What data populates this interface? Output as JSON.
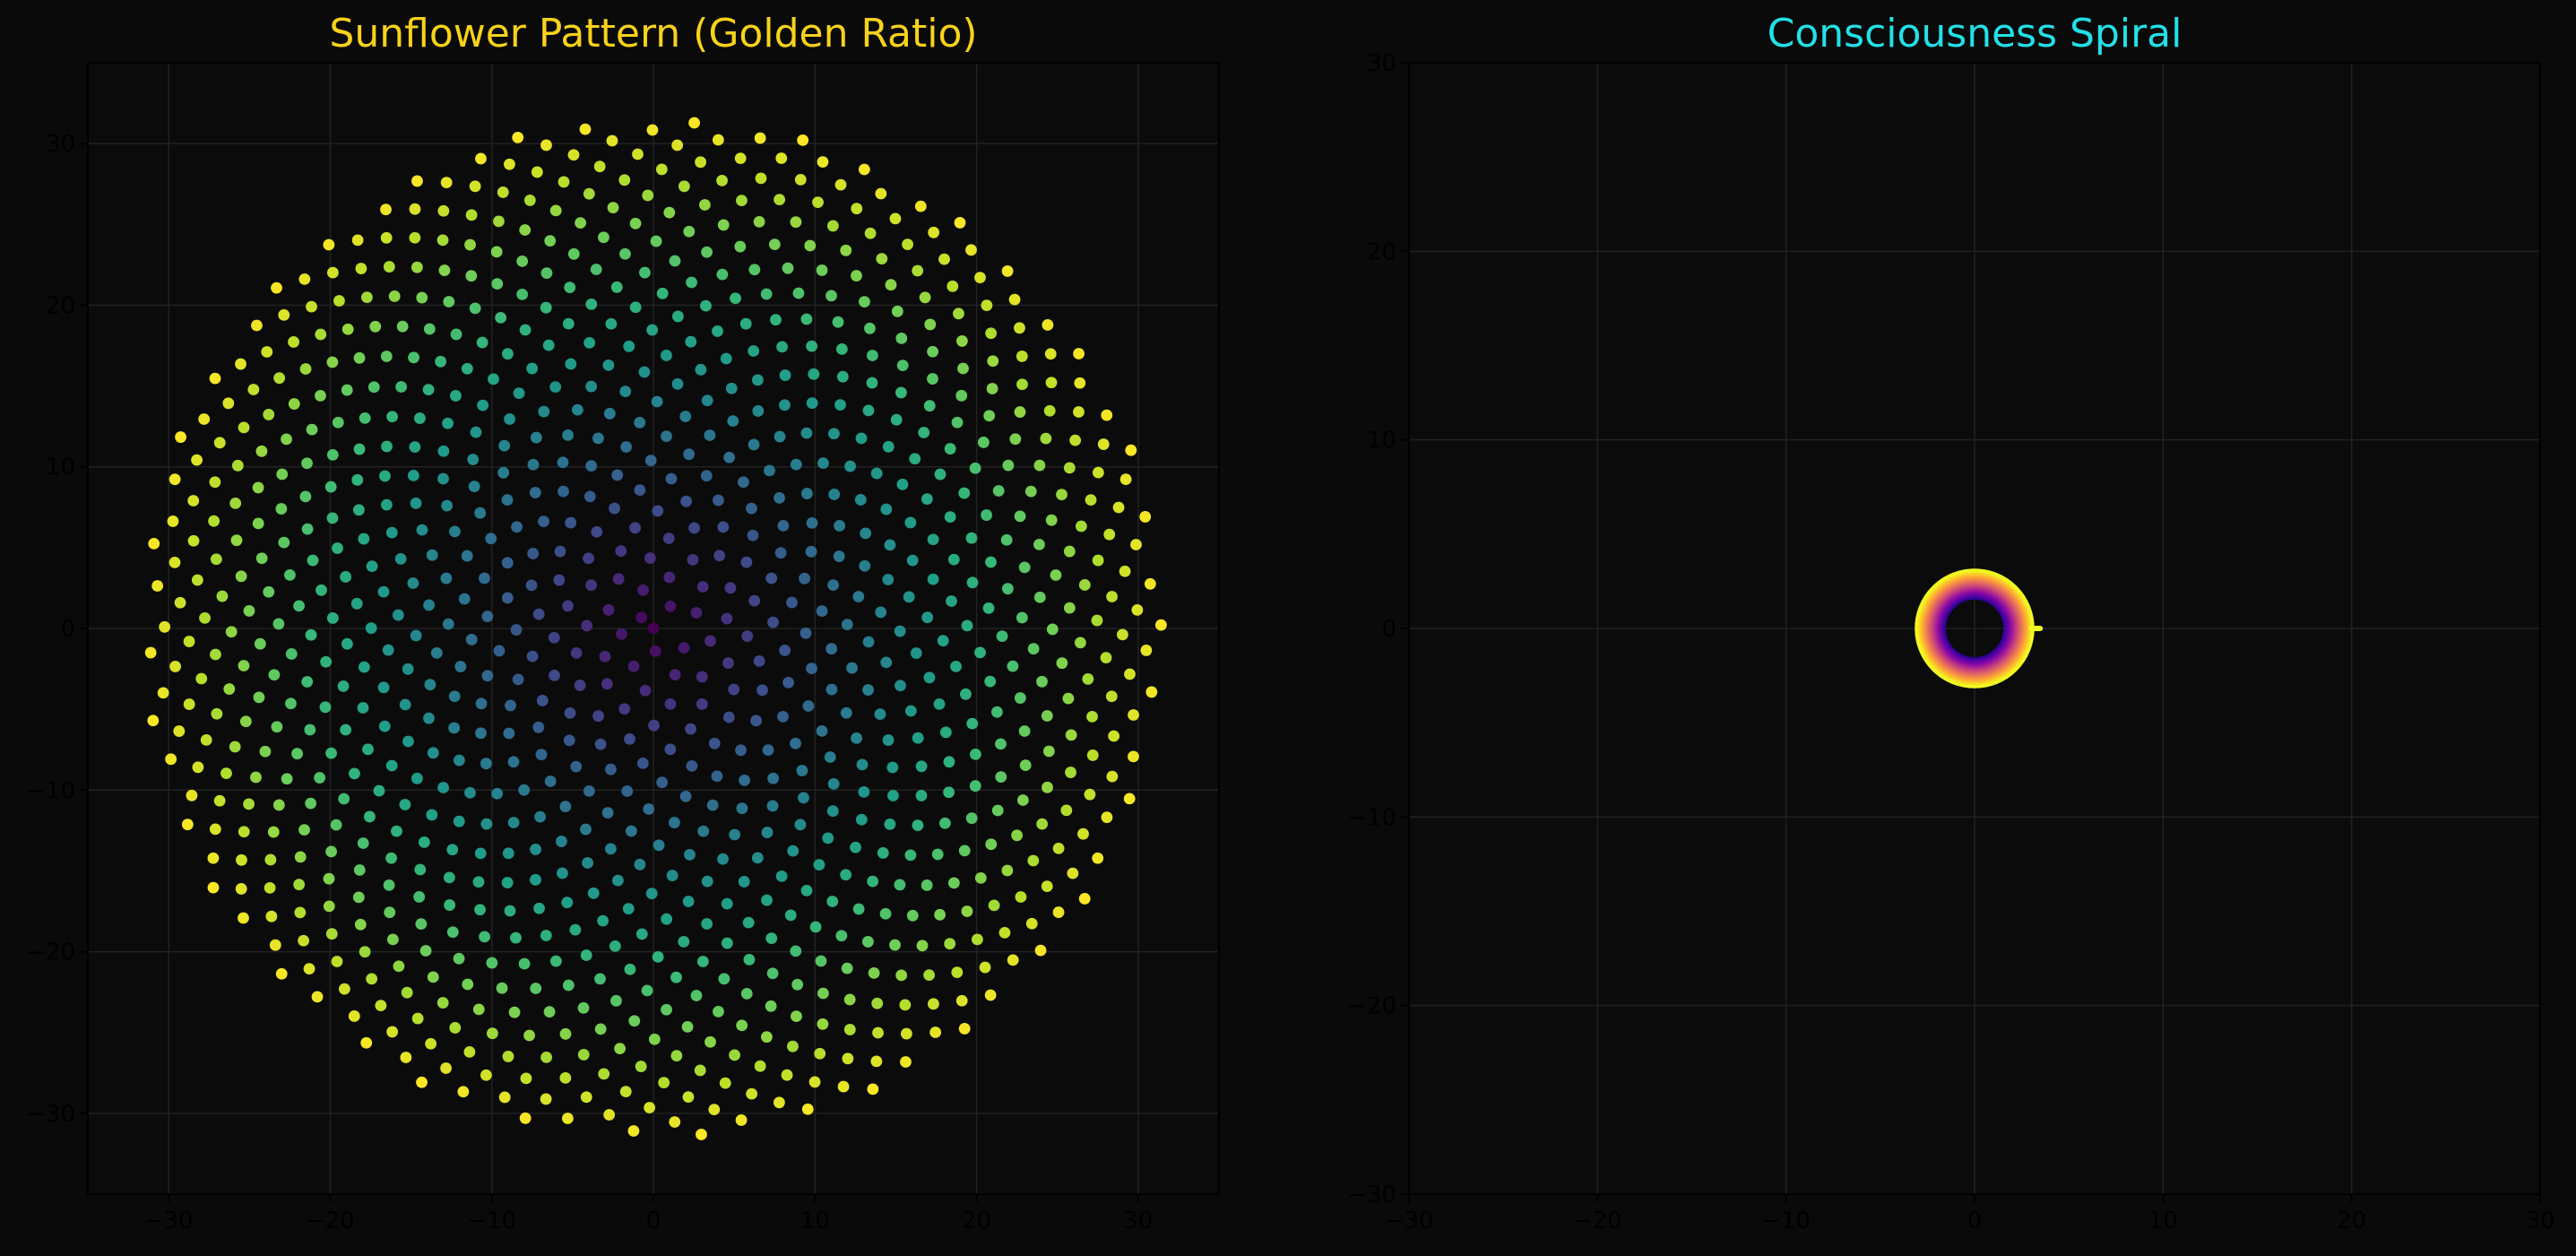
{
  "figure": {
    "background": "#0a0a0a",
    "axes_background": "#0b0b0b",
    "grid_color": "#222222",
    "tick_label_color": "#000000"
  },
  "chart_data": [
    {
      "type": "scatter",
      "title": "Sunflower Pattern (Golden Ratio)",
      "title_color": "#f7d21a",
      "xlabel": "",
      "ylabel": "",
      "xlim": [
        -35,
        35
      ],
      "ylim": [
        -35,
        35
      ],
      "xticks": [
        -30,
        -20,
        -10,
        0,
        10,
        20,
        30
      ],
      "yticks": [
        -30,
        -20,
        -10,
        0,
        10,
        20,
        30
      ],
      "xtick_labels": [
        "−30",
        "−20",
        "−10",
        "0",
        "10",
        "20",
        "30"
      ],
      "ytick_labels": [
        "−30",
        "−20",
        "−10",
        "0",
        "10",
        "20",
        "30"
      ],
      "grid": true,
      "legend": "none",
      "colormap": "viridis",
      "pattern": "phyllotaxis",
      "point_count": 1000,
      "angle_step_degrees": 137.508,
      "radius_scale": 1.0,
      "color_by": "radius"
    },
    {
      "type": "line",
      "title": "Consciousness Spiral",
      "title_color": "#22e0e8",
      "xlabel": "",
      "ylabel": "",
      "xlim": [
        -30,
        30
      ],
      "ylim": [
        -30,
        30
      ],
      "xticks": [
        -30,
        -20,
        -10,
        0,
        10,
        20,
        30
      ],
      "yticks": [
        -30,
        -20,
        -10,
        0,
        10,
        20,
        30
      ],
      "xtick_labels": [
        "−30",
        "−20",
        "−10",
        "0",
        "10",
        "20",
        "30"
      ],
      "ytick_labels": [
        "−30",
        "−20",
        "−10",
        "0",
        "10",
        "20",
        "30"
      ],
      "grid": true,
      "legend": "none",
      "colormap": "plasma",
      "ring": {
        "center": [
          0,
          0
        ],
        "inner_radius": 1.6,
        "outer_radius": 3.1
      }
    }
  ]
}
